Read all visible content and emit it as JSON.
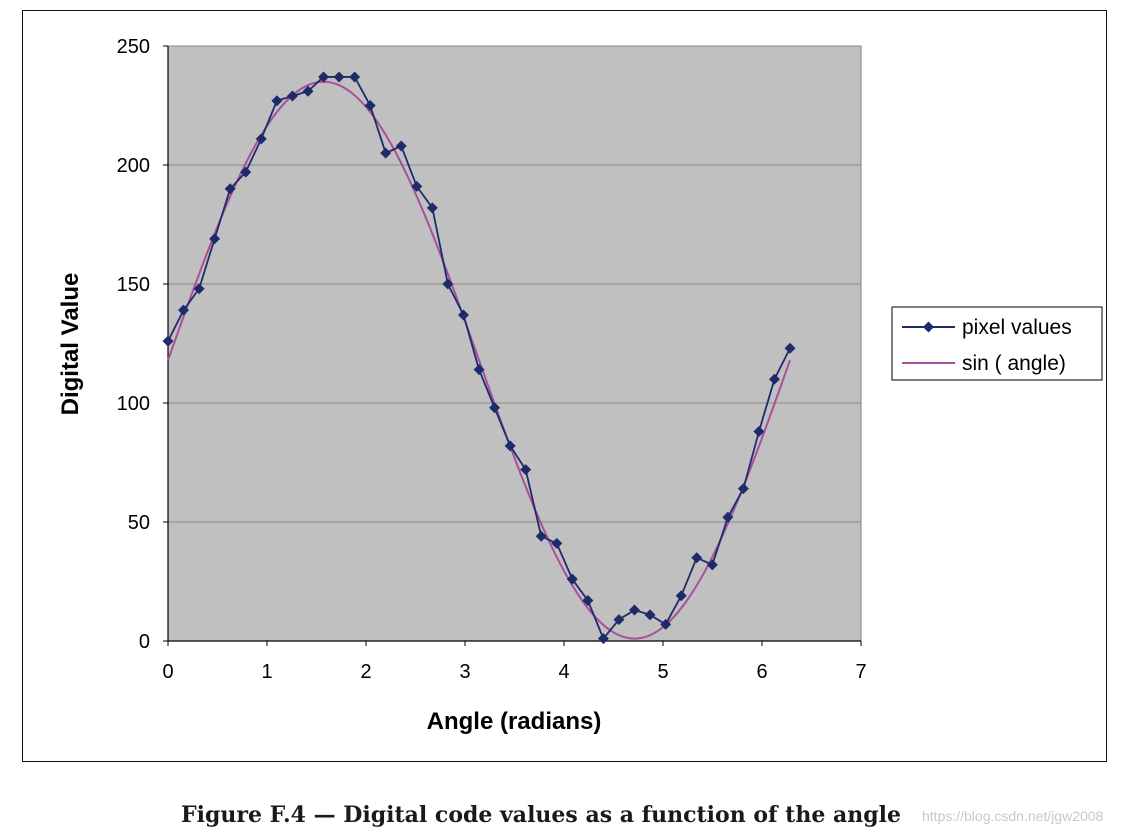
{
  "chart_data": {
    "type": "line",
    "xlabel": "Angle (radians)",
    "ylabel": "Digital Value",
    "xlim": [
      0,
      7
    ],
    "ylim": [
      0,
      250
    ],
    "x_ticks": [
      0,
      1,
      2,
      3,
      4,
      5,
      6,
      7
    ],
    "y_ticks": [
      0,
      50,
      100,
      150,
      200,
      250
    ],
    "x_tick_labels": [
      "0",
      "1",
      "2",
      "3",
      "4",
      "5",
      "6",
      "7"
    ],
    "y_tick_labels": [
      "0",
      "50",
      "100",
      "150",
      "200",
      "250"
    ],
    "grid": "horizontal",
    "plot_background": "#c0c0c0",
    "legend_placement": "right",
    "series": [
      {
        "name": "pixel values",
        "color": "#1f2a6b",
        "marker": "diamond",
        "x": [
          0,
          0.157,
          0.314,
          0.471,
          0.628,
          0.785,
          0.942,
          1.1,
          1.257,
          1.414,
          1.571,
          1.728,
          1.885,
          2.042,
          2.199,
          2.356,
          2.513,
          2.67,
          2.827,
          2.985,
          3.142,
          3.299,
          3.456,
          3.613,
          3.77,
          3.927,
          4.084,
          4.241,
          4.398,
          4.555,
          4.712,
          4.869,
          5.027,
          5.184,
          5.341,
          5.498,
          5.655,
          5.812,
          5.969,
          6.126,
          6.283
        ],
        "y": [
          126,
          139,
          148,
          169,
          190,
          197,
          211,
          227,
          229,
          231,
          237,
          237,
          237,
          225,
          205,
          208,
          191,
          182,
          150,
          137,
          114,
          98,
          82,
          72,
          44,
          41,
          26,
          17,
          1,
          9,
          13,
          11,
          7,
          19,
          35,
          32,
          52,
          64,
          88,
          110,
          123
        ]
      },
      {
        "name": "sin ( angle)",
        "color": "#a8509a",
        "marker": "none",
        "function": "118 + 117*sin(x)",
        "x_range": [
          0,
          6.283
        ]
      }
    ]
  },
  "caption": {
    "text": "Figure F.4 — Digital code values as a function of the angle"
  },
  "watermark": {
    "text": "https://blog.csdn.net/jgw2008"
  }
}
